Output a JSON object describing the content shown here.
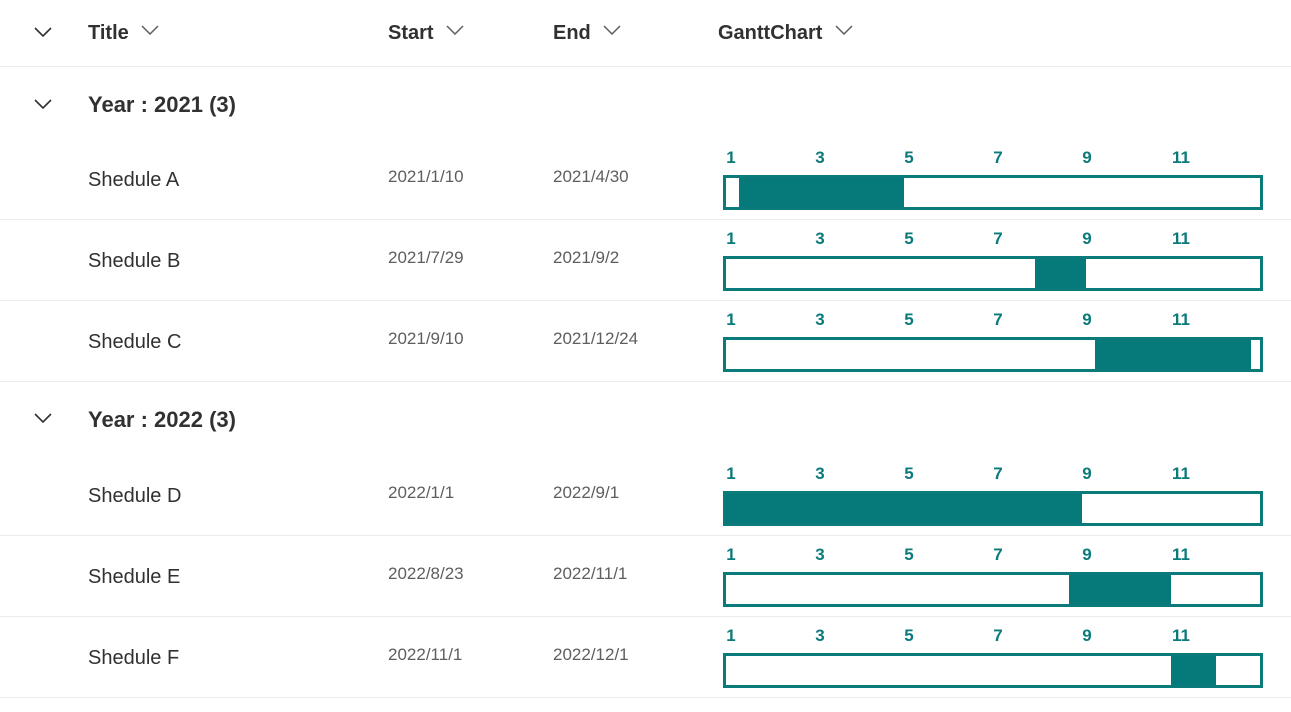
{
  "header": {
    "columns": [
      {
        "label": "Title"
      },
      {
        "label": "Start"
      },
      {
        "label": "End"
      },
      {
        "label": "GanttChart"
      }
    ]
  },
  "timeline_ticks": [
    "1",
    "3",
    "5",
    "7",
    "9",
    "11"
  ],
  "colors": {
    "accent": "#0b7a7b",
    "fill": "#067a7b",
    "divider": "#edebe9",
    "text": "#323130",
    "muted": "#605e5c"
  },
  "groups": [
    {
      "title": "Year : 2021 (3)",
      "rows": [
        {
          "title": "Shedule A",
          "start": "2021/1/10",
          "end": "2021/4/30",
          "progress_start_month": 1.3,
          "progress_end_month": 5.0
        },
        {
          "title": "Shedule B",
          "start": "2021/7/29",
          "end": "2021/9/2",
          "progress_start_month": 7.95,
          "progress_end_month": 9.1
        },
        {
          "title": "Shedule C",
          "start": "2021/9/10",
          "end": "2021/12/24",
          "progress_start_month": 9.3,
          "progress_end_month": 12.8
        }
      ]
    },
    {
      "title": "Year : 2022 (3)",
      "rows": [
        {
          "title": "Shedule D",
          "start": "2022/1/1",
          "end": "2022/9/1",
          "progress_start_month": 1.0,
          "progress_end_month": 9.0
        },
        {
          "title": "Shedule E",
          "start": "2022/8/23",
          "end": "2022/11/1",
          "progress_start_month": 8.7,
          "progress_end_month": 11.0
        },
        {
          "title": "Shedule F",
          "start": "2022/11/1",
          "end": "2022/12/1",
          "progress_start_month": 11.0,
          "progress_end_month": 12.0
        }
      ]
    }
  ]
}
